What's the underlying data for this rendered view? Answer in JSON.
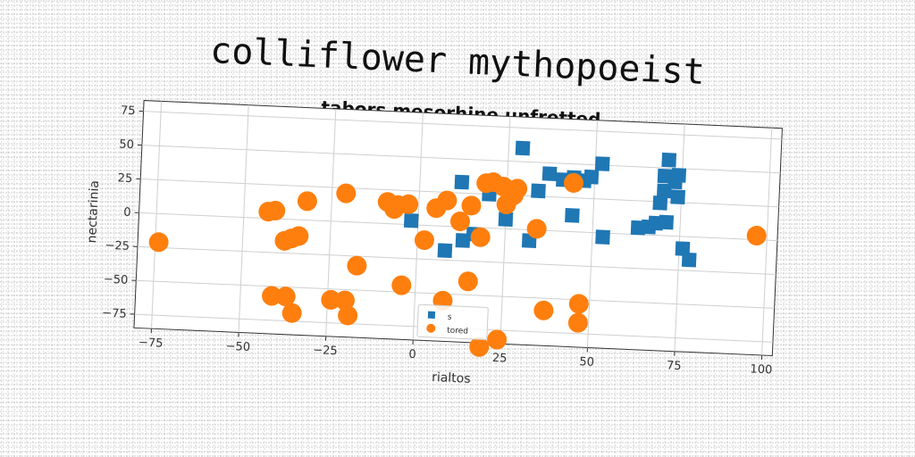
{
  "chart_data": {
    "type": "scatter",
    "suptitle": "colliflower mythopoeist",
    "title": "tabors mesorhine unfretted",
    "xlabel": "rialtos",
    "ylabel": "nectarinia",
    "xlim": [
      -80,
      103
    ],
    "ylim": [
      -85,
      83
    ],
    "xticks": [
      -75,
      -50,
      -25,
      0,
      25,
      50,
      75,
      100
    ],
    "yticks": [
      -75,
      -50,
      -25,
      0,
      25,
      50,
      75
    ],
    "grid": true,
    "legend_position": "lower-center",
    "series": [
      {
        "name": "s",
        "marker": "square",
        "color": "#1f77b4",
        "points": [
          [
            29,
            60
          ],
          [
            12,
            33
          ],
          [
            20,
            25
          ],
          [
            -2,
            3
          ],
          [
            8,
            -18
          ],
          [
            13,
            -10
          ],
          [
            16,
            -5
          ],
          [
            25,
            7
          ],
          [
            34,
            29
          ],
          [
            32,
            -8
          ],
          [
            37,
            42
          ],
          [
            41,
            38
          ],
          [
            44,
            40
          ],
          [
            44,
            12
          ],
          [
            47,
            38
          ],
          [
            49,
            41
          ],
          [
            52,
            51
          ],
          [
            53,
            -3
          ],
          [
            63,
            5
          ],
          [
            66,
            6
          ],
          [
            68,
            9
          ],
          [
            69,
            24
          ],
          [
            70,
            33
          ],
          [
            70,
            44
          ],
          [
            71,
            56
          ],
          [
            73,
            40
          ],
          [
            74,
            45
          ],
          [
            74,
            29
          ],
          [
            76,
            -9
          ],
          [
            78,
            -17
          ],
          [
            71,
            10
          ]
        ]
      },
      {
        "name": "tored",
        "marker": "circle",
        "color": "#ff7f0e",
        "points": [
          [
            -74,
            -21
          ],
          [
            -43,
            5
          ],
          [
            -41,
            6
          ],
          [
            -38,
            -16
          ],
          [
            -36,
            -14
          ],
          [
            -34,
            -12
          ],
          [
            -32,
            14
          ],
          [
            -41,
            -57
          ],
          [
            -37,
            -57
          ],
          [
            -35,
            -69
          ],
          [
            -21,
            21
          ],
          [
            -24,
            -58
          ],
          [
            -20,
            -58
          ],
          [
            -19,
            -69
          ],
          [
            -17,
            -32
          ],
          [
            -9,
            16
          ],
          [
            -6,
            14
          ],
          [
            -7,
            11
          ],
          [
            -3,
            15
          ],
          [
            -4,
            -45
          ],
          [
            2,
            -11
          ],
          [
            5,
            13
          ],
          [
            8,
            19
          ],
          [
            8,
            -55
          ],
          [
            12,
            4
          ],
          [
            15,
            16
          ],
          [
            15,
            -40
          ],
          [
            18,
            -7
          ],
          [
            19,
            33
          ],
          [
            21,
            34
          ],
          [
            24,
            31
          ],
          [
            25,
            18
          ],
          [
            28,
            30
          ],
          [
            27,
            25
          ],
          [
            34,
            1
          ],
          [
            37,
            -59
          ],
          [
            44,
            36
          ],
          [
            47,
            -53
          ],
          [
            47,
            -67
          ],
          [
            24,
            -82
          ],
          [
            19,
            -88
          ],
          [
            97,
            3
          ]
        ]
      }
    ]
  }
}
